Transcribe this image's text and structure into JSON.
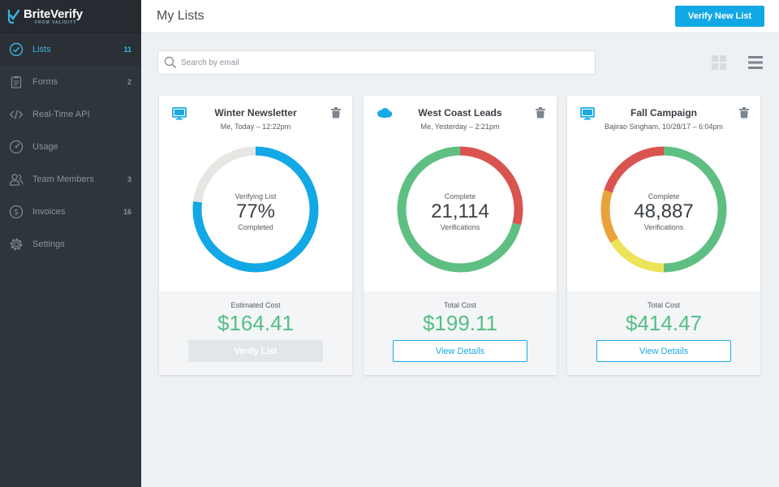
{
  "brand": {
    "name": "BriteVerify",
    "tagline": "FROM VALIDITY"
  },
  "sidebar": {
    "items": [
      {
        "label": "Lists",
        "count": "11",
        "icon": "check-circle-icon",
        "active": true
      },
      {
        "label": "Forms",
        "count": "2",
        "icon": "clipboard-icon"
      },
      {
        "label": "Real-Time API",
        "count": "",
        "icon": "code-icon"
      },
      {
        "label": "Usage",
        "count": "",
        "icon": "gauge-icon"
      },
      {
        "label": "Team Members",
        "count": "3",
        "icon": "users-icon"
      },
      {
        "label": "Invoices",
        "count": "16",
        "icon": "dollar-circle-icon"
      },
      {
        "label": "Settings",
        "count": "",
        "icon": "gear-icon"
      }
    ]
  },
  "header": {
    "title": "My Lists",
    "primary_button": "Verify New List"
  },
  "search": {
    "placeholder": "Search by email",
    "value": ""
  },
  "colors": {
    "accent": "#12a8e5",
    "money": "#56be84",
    "red": "#d9534f",
    "green": "#5fbf83",
    "orange": "#eaa23c",
    "yellow": "#ede35a",
    "track": "#e6e6e3"
  },
  "cards": [
    {
      "icon": "monitor-icon",
      "title": "Winter Newsletter",
      "subtitle": "Me, Today – 12:22pm",
      "status": "Verifying List",
      "value": "77%",
      "value_label": "Completed",
      "progress": 0.77,
      "cost_label": "Estimated Cost",
      "cost": "$164.41",
      "button": "Verify List",
      "button_disabled": true
    },
    {
      "icon": "salesforce-cloud-icon",
      "title": "West Coast Leads",
      "subtitle": "Me, Yesterday – 2:21pm",
      "status": "Complete",
      "value": "21,114",
      "value_label": "Verifications",
      "segments": [
        {
          "color": "#d9534f",
          "fraction": 0.29
        },
        {
          "color": "#5fbf83",
          "fraction": 0.71
        }
      ],
      "cost_label": "Total Cost",
      "cost": "$199.11",
      "button": "View Details",
      "button_disabled": false
    },
    {
      "icon": "monitor-icon",
      "title": "Fall Campaign",
      "subtitle": "Bajirao Singham, 10/28/17 – 6:04pm",
      "status": "Complete",
      "value": "48,887",
      "value_label": "Verifications",
      "segments": [
        {
          "color": "#5fbf83",
          "fraction": 0.5
        },
        {
          "color": "#ede35a",
          "fraction": 0.16
        },
        {
          "color": "#eaa23c",
          "fraction": 0.14
        },
        {
          "color": "#d9534f",
          "fraction": 0.2
        }
      ],
      "cost_label": "Total Cost",
      "cost": "$414.47",
      "button": "View Details",
      "button_disabled": false
    }
  ]
}
